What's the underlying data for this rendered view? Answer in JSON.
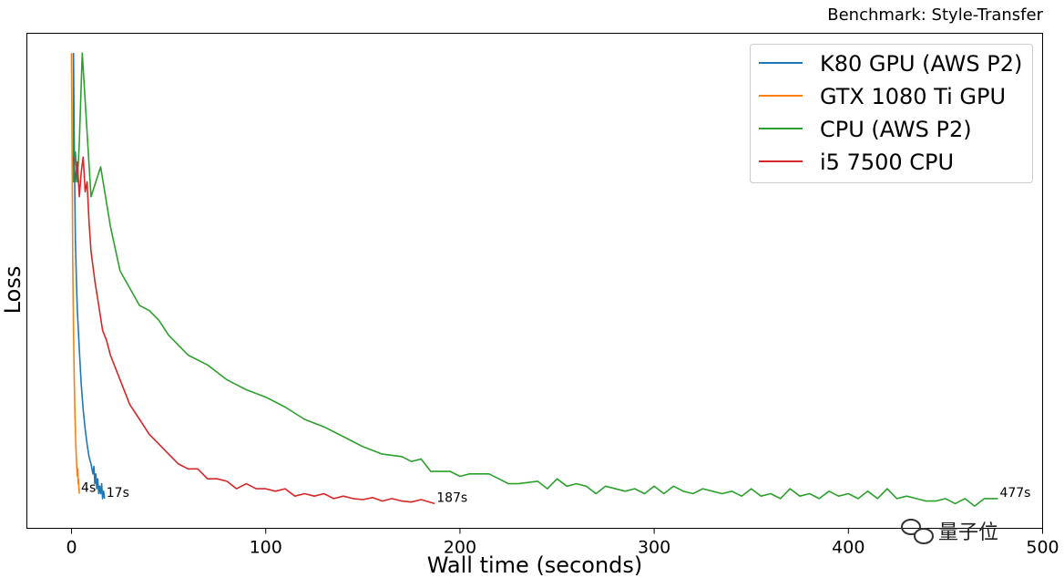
{
  "watermark": "量子位",
  "chart_data": {
    "type": "line",
    "title": "Benchmark: Style-Transfer",
    "xlabel": "Wall time (seconds)",
    "ylabel": "Loss",
    "xlim": [
      -23,
      500
    ],
    "ylim": [
      0,
      100
    ],
    "xticks": [
      0,
      100,
      200,
      300,
      400,
      500
    ],
    "y_tick_labels": false,
    "grid": false,
    "legend_position": "top-right",
    "series": [
      {
        "name": "K80 GPU (AWS P2)",
        "color": "#1f77b4",
        "end_label": "17s",
        "points": [
          [
            1,
            96
          ],
          [
            1.5,
            74
          ],
          [
            2,
            58
          ],
          [
            2.5,
            50
          ],
          [
            3,
            44
          ],
          [
            3.5,
            40
          ],
          [
            4,
            36
          ],
          [
            5,
            29
          ],
          [
            6,
            24
          ],
          [
            7,
            20
          ],
          [
            8,
            17
          ],
          [
            9,
            14.5
          ],
          [
            10,
            13
          ],
          [
            11,
            11
          ],
          [
            11.5,
            12.5
          ],
          [
            12,
            9
          ],
          [
            12.5,
            11
          ],
          [
            13,
            8
          ],
          [
            13.5,
            10
          ],
          [
            14,
            7
          ],
          [
            14.5,
            8.5
          ],
          [
            15,
            7
          ],
          [
            15.5,
            9
          ],
          [
            16,
            6
          ],
          [
            16.5,
            7.5
          ],
          [
            17,
            6
          ]
        ]
      },
      {
        "name": "GTX 1080 Ti GPU",
        "color": "#ff7f0e",
        "end_label": "4s",
        "points": [
          [
            0,
            96
          ],
          [
            0.3,
            75
          ],
          [
            0.6,
            55
          ],
          [
            1,
            40
          ],
          [
            1.4,
            30
          ],
          [
            1.8,
            22
          ],
          [
            2.2,
            17
          ],
          [
            2.6,
            13
          ],
          [
            3,
            10.5
          ],
          [
            3.2,
            12
          ],
          [
            3.4,
            9
          ],
          [
            3.6,
            10
          ],
          [
            3.8,
            8
          ],
          [
            4,
            7
          ]
        ]
      },
      {
        "name": "CPU (AWS P2)",
        "color": "#2ca02c",
        "end_label": "477s",
        "points": [
          [
            1,
            96
          ],
          [
            1,
            70
          ],
          [
            2,
            76
          ],
          [
            3,
            70
          ],
          [
            4,
            78
          ],
          [
            5,
            90
          ],
          [
            5.5,
            96
          ],
          [
            10,
            67
          ],
          [
            15,
            73
          ],
          [
            20,
            61
          ],
          [
            25,
            52
          ],
          [
            35,
            45
          ],
          [
            40,
            44
          ],
          [
            45,
            42
          ],
          [
            50,
            39
          ],
          [
            55,
            37
          ],
          [
            60,
            35
          ],
          [
            70,
            33
          ],
          [
            80,
            30
          ],
          [
            90,
            28
          ],
          [
            100,
            26.5
          ],
          [
            110,
            24.5
          ],
          [
            120,
            22
          ],
          [
            130,
            20.5
          ],
          [
            140,
            18.5
          ],
          [
            150,
            16.5
          ],
          [
            160,
            15
          ],
          [
            170,
            14.5
          ],
          [
            175,
            13.5
          ],
          [
            180,
            14
          ],
          [
            185,
            11.5
          ],
          [
            190,
            11.5
          ],
          [
            195,
            11.5
          ],
          [
            200,
            10.5
          ],
          [
            205,
            11
          ],
          [
            210,
            11
          ],
          [
            215,
            11
          ],
          [
            220,
            10
          ],
          [
            225,
            9
          ],
          [
            230,
            9
          ],
          [
            240,
            9.5
          ],
          [
            245,
            8
          ],
          [
            250,
            10
          ],
          [
            255,
            8.5
          ],
          [
            260,
            9
          ],
          [
            265,
            8.5
          ],
          [
            270,
            7
          ],
          [
            275,
            8.5
          ],
          [
            285,
            7.5
          ],
          [
            290,
            8
          ],
          [
            295,
            7
          ],
          [
            300,
            8.5
          ],
          [
            305,
            7
          ],
          [
            310,
            8.5
          ],
          [
            315,
            7.5
          ],
          [
            320,
            7
          ],
          [
            325,
            8
          ],
          [
            330,
            7.5
          ],
          [
            335,
            7
          ],
          [
            340,
            7.5
          ],
          [
            345,
            6.5
          ],
          [
            350,
            8
          ],
          [
            355,
            6.5
          ],
          [
            360,
            7
          ],
          [
            365,
            6
          ],
          [
            370,
            8
          ],
          [
            375,
            6.5
          ],
          [
            380,
            7
          ],
          [
            385,
            6
          ],
          [
            390,
            7.5
          ],
          [
            395,
            6.5
          ],
          [
            400,
            7
          ],
          [
            405,
            6
          ],
          [
            410,
            7.5
          ],
          [
            415,
            6
          ],
          [
            420,
            8
          ],
          [
            425,
            6
          ],
          [
            430,
            6.5
          ],
          [
            435,
            6
          ],
          [
            440,
            5.5
          ],
          [
            445,
            5.5
          ],
          [
            450,
            6
          ],
          [
            455,
            5
          ],
          [
            460,
            6
          ],
          [
            465,
            4.5
          ],
          [
            470,
            6
          ],
          [
            477,
            6
          ]
        ]
      },
      {
        "name": "i5 7500 CPU",
        "color": "#d62728",
        "end_label": "187s",
        "points": [
          [
            1,
            75
          ],
          [
            2,
            70
          ],
          [
            3,
            74
          ],
          [
            4,
            67
          ],
          [
            5,
            72
          ],
          [
            6,
            75
          ],
          [
            7,
            68
          ],
          [
            8,
            70
          ],
          [
            9,
            62
          ],
          [
            10,
            56
          ],
          [
            12,
            50
          ],
          [
            14,
            45
          ],
          [
            16,
            40
          ],
          [
            18,
            38
          ],
          [
            20,
            35
          ],
          [
            22,
            33
          ],
          [
            25,
            30
          ],
          [
            30,
            25
          ],
          [
            35,
            22
          ],
          [
            40,
            19
          ],
          [
            45,
            17
          ],
          [
            50,
            15
          ],
          [
            55,
            13
          ],
          [
            60,
            12
          ],
          [
            65,
            12
          ],
          [
            70,
            10
          ],
          [
            75,
            10
          ],
          [
            80,
            9.5
          ],
          [
            85,
            8
          ],
          [
            90,
            9
          ],
          [
            95,
            8
          ],
          [
            100,
            8
          ],
          [
            105,
            7.5
          ],
          [
            110,
            8
          ],
          [
            115,
            6.5
          ],
          [
            120,
            7
          ],
          [
            125,
            6.5
          ],
          [
            130,
            7
          ],
          [
            135,
            6
          ],
          [
            140,
            6.5
          ],
          [
            145,
            6
          ],
          [
            150,
            5.8
          ],
          [
            155,
            6.2
          ],
          [
            160,
            5.5
          ],
          [
            165,
            6
          ],
          [
            170,
            5.5
          ],
          [
            175,
            5.3
          ],
          [
            180,
            5.8
          ],
          [
            187,
            5
          ]
        ]
      }
    ]
  }
}
